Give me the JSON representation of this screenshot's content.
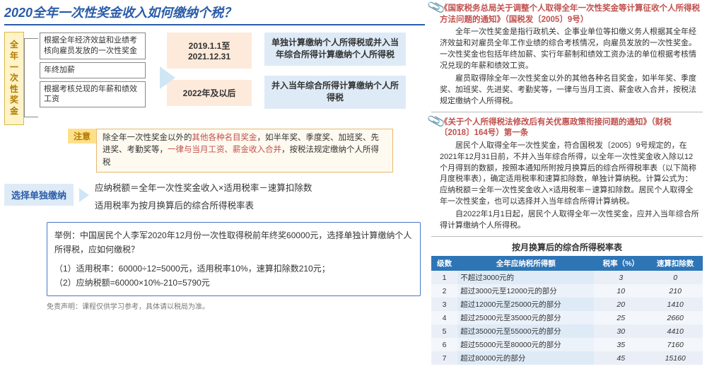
{
  "title": "2020全年一次性奖金收入如何缴纳个税？",
  "vtag": "全年一次性奖金",
  "defs": {
    "a": "根据全年经济效益和业绩考核向雇员发放的一次性奖金",
    "b": "年终加薪",
    "c": "根据考核兑现的年薪和绩效工资"
  },
  "periods": {
    "a": "2019.1.1至2021.12.31",
    "b": "2022年及以后"
  },
  "results": {
    "a": "单独计算缴纳个人所得税或并入当年综合所得计算缴纳个人所得税",
    "b": "并入当年综合所得计算缴纳个人所得税"
  },
  "note": {
    "tag": "注意",
    "pre": "除全年一次性奖金以外的",
    "r1": "其他各种名目奖金",
    "mid": "，如半年奖、季度奖、加班奖、先进奖、考勤奖等，",
    "r2": "一律与当月工资、薪金收入合并",
    "post": "，按税法规定缴纳个人所得税"
  },
  "choice": {
    "tag": "选择单独缴纳"
  },
  "formula": {
    "a": "应纳税额＝全年一次性奖金收入×适用税率－速算扣除数",
    "b": "适用税率为按月换算后的综合所得税率表"
  },
  "example": {
    "q": "举例：中国居民个人李军2020年12月份一次性取得税前年终奖60000元，选择单独计算缴纳个人所得税，应如何缴税？",
    "l1": "（1）适用税率：60000÷12=5000元，适用税率10%，速算扣除数210元；",
    "l2": "（2）应纳税额=60000×10%-210=5790元"
  },
  "disclaimer": "免责声明：课程仅供学习参考，具体请以税局为准。",
  "doc1": {
    "title": "《国家税务总局关于调整个人取得全年一次性奖金等计算征收个人所得税方法问题的通知》（国税发〔2005〕9号）",
    "p1": "全年一次性奖金是指行政机关、企事业单位等扣缴义务人根据其全年经济效益和对雇员全年工作业绩的综合考核情况，向雇员发放的一次性奖金。一次性奖金也包括年终加薪、实行年薪制和绩效工资办法的单位根据考核情况兑现的年薪和绩效工资。",
    "p2": "雇员取得除全年一次性奖金以外的其他各种名目奖金，如半年奖、季度奖、加班奖、先进奖、考勤奖等，一律与当月工资、薪金收入合并，按税法规定缴纳个人所得税。"
  },
  "doc2": {
    "title": "《关于个人所得税法修改后有关优惠政策衔接问题的通知》（财税〔2018〕164号）第一条",
    "p1": "居民个人取得全年一次性奖金，符合国税发〔2005〕9号规定的，在2021年12月31日前，不并入当年综合所得，以全年一次性奖金收入除以12个月得到的数额，按照本通知所附按月换算后的综合所得税率表（以下简称月度税率表），确定适用税率和速算扣除数，单独计算纳税。计算公式为：应纳税额＝全年一次性奖金收入×适用税率－速算扣除数。居民个人取得全年一次性奖金，也可以选择并入当年综合所得计算纳税。",
    "p2": "自2022年1月1日起，居民个人取得全年一次性奖金，应并入当年综合所得计算缴纳个人所得税。"
  },
  "rateTable": {
    "title": "按月换算后的综合所得税率表",
    "h": {
      "lv": "级数",
      "desc": "全年应纳税所得额",
      "rate": "税率（%）",
      "deduct": "速算扣除数"
    },
    "rows": [
      {
        "lv": "1",
        "desc": "不超过3000元的",
        "rate": "3",
        "deduct": "0"
      },
      {
        "lv": "2",
        "desc": "超过3000元至12000元的部分",
        "rate": "10",
        "deduct": "210"
      },
      {
        "lv": "3",
        "desc": "超过12000元至25000元的部分",
        "rate": "20",
        "deduct": "1410"
      },
      {
        "lv": "4",
        "desc": "超过25000元至35000元的部分",
        "rate": "25",
        "deduct": "2660"
      },
      {
        "lv": "5",
        "desc": "超过35000元至55000元的部分",
        "rate": "30",
        "deduct": "4410"
      },
      {
        "lv": "6",
        "desc": "超过55000元至80000元的部分",
        "rate": "35",
        "deduct": "7160"
      },
      {
        "lv": "7",
        "desc": "超过80000元的部分",
        "rate": "45",
        "deduct": "15160"
      }
    ]
  }
}
